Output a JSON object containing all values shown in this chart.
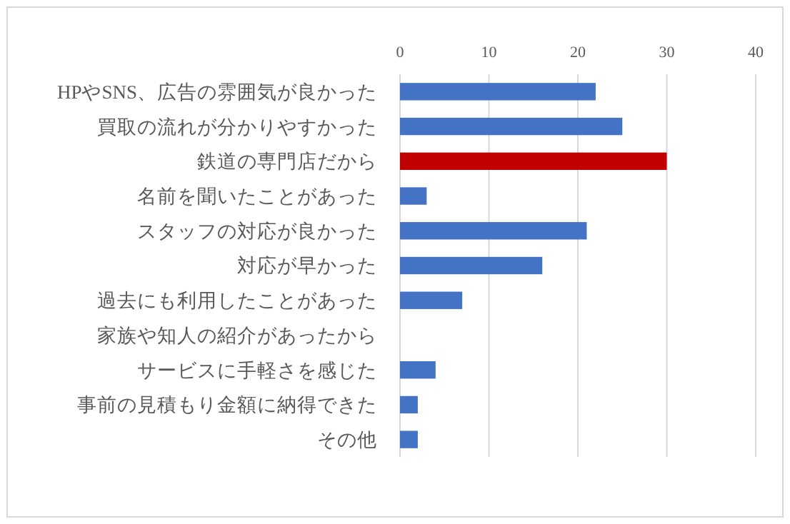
{
  "chart_data": {
    "type": "bar",
    "orientation": "horizontal",
    "categories": [
      "HPやSNS、広告の雰囲気が良かった",
      "買取の流れが分かりやすかった",
      "鉄道の専門店だから",
      "名前を聞いたことがあった",
      "スタッフの対応が良かった",
      "対応が早かった",
      "過去にも利用したことがあった",
      "家族や知人の紹介があったから",
      "サービスに手軽さを感じた",
      "事前の見積もり金額に納得できた",
      "その他"
    ],
    "values": [
      22,
      25,
      30,
      3,
      21,
      16,
      7,
      0,
      4,
      2,
      2
    ],
    "colors": [
      "#4472c4",
      "#4472c4",
      "#c00000",
      "#4472c4",
      "#4472c4",
      "#4472c4",
      "#4472c4",
      "#4472c4",
      "#4472c4",
      "#4472c4",
      "#4472c4"
    ],
    "xlim": [
      0,
      40
    ],
    "xticks": [
      0,
      10,
      20,
      30,
      40
    ],
    "grid": "x"
  }
}
